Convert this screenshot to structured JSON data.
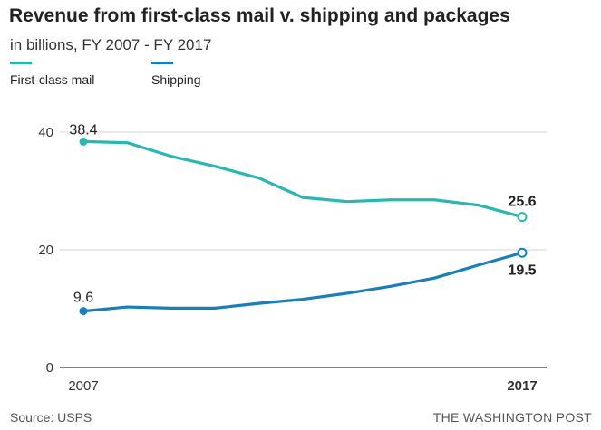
{
  "chart_data": {
    "type": "line",
    "title": "Revenue from first-class mail v. shipping and packages",
    "subtitle": "in billions, FY 2007 - FY 2017",
    "x": [
      2007,
      2008,
      2009,
      2010,
      2011,
      2012,
      2013,
      2014,
      2015,
      2016,
      2017
    ],
    "x_tick_labels": [
      "2007",
      "2017"
    ],
    "y_ticks": [
      "0",
      "20",
      "40"
    ],
    "ylim": [
      0,
      40
    ],
    "series": [
      {
        "name": "First-class mail",
        "color": "#2ab7b2",
        "values": [
          38.4,
          38.2,
          35.9,
          34.2,
          32.2,
          28.9,
          28.2,
          28.5,
          28.5,
          27.6,
          25.6
        ],
        "start_label": "38.4",
        "end_label": "25.6"
      },
      {
        "name": "Shipping",
        "color": "#1a7fb8",
        "values": [
          9.6,
          10.3,
          10.1,
          10.1,
          10.9,
          11.6,
          12.6,
          13.8,
          15.2,
          17.4,
          19.5
        ],
        "start_label": "9.6",
        "end_label": "19.5"
      }
    ]
  },
  "footer": {
    "source": "Source: USPS",
    "credit": "THE WASHINGTON POST"
  }
}
